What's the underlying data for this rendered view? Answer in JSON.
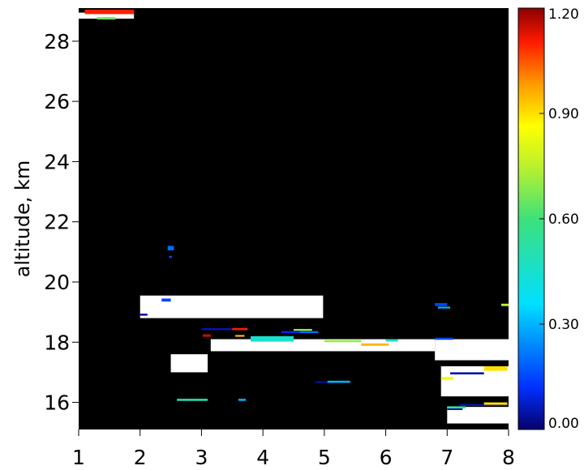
{
  "chart_data": {
    "type": "heatmap",
    "title": "",
    "xlabel": "",
    "ylabel": "altitude, km",
    "xlim": [
      1,
      8
    ],
    "ylim": [
      15.1,
      29.1
    ],
    "xticks": [
      "1",
      "2",
      "3",
      "4",
      "5",
      "6",
      "7",
      "8"
    ],
    "yticks": [
      "16",
      "18",
      "20",
      "22",
      "24",
      "26",
      "28"
    ],
    "background": "#000000",
    "colorbar": {
      "range": [
        0.0,
        1.2
      ],
      "tick_labels": [
        "0.00",
        "0.30",
        "0.60",
        "0.90",
        "1.20"
      ],
      "colormap": "rainbow (dark blue -> blue -> cyan -> green -> yellow -> orange -> red -> dark red)"
    },
    "saturated_color": "#ffffff",
    "saturated_regions": [
      {
        "x": [
          1.0,
          1.9
        ],
        "y": [
          28.75,
          28.95
        ]
      },
      {
        "x": [
          2.0,
          4.98
        ],
        "y": [
          18.8,
          19.55
        ]
      },
      {
        "x": [
          3.15,
          6.8
        ],
        "y": [
          17.7,
          18.1
        ]
      },
      {
        "x": [
          2.5,
          3.1
        ],
        "y": [
          17.0,
          17.6
        ]
      },
      {
        "x": [
          6.8,
          8.0
        ],
        "y": [
          17.4,
          18.1
        ]
      },
      {
        "x": [
          6.9,
          8.0
        ],
        "y": [
          16.2,
          17.2
        ]
      },
      {
        "x": [
          7.0,
          8.0
        ],
        "y": [
          15.3,
          15.85
        ]
      }
    ],
    "colored_cells": [
      {
        "x": [
          1.1,
          1.9
        ],
        "y": [
          28.9,
          29.05
        ],
        "value": 1.1
      },
      {
        "x": [
          1.3,
          1.6
        ],
        "y": [
          28.72,
          28.8
        ],
        "value": 0.65
      },
      {
        "x": [
          2.45,
          2.55
        ],
        "y": [
          21.05,
          21.2
        ],
        "value": 0.2
      },
      {
        "x": [
          2.47,
          2.52
        ],
        "y": [
          20.8,
          20.87
        ],
        "value": 0.15
      },
      {
        "x": [
          2.35,
          2.5
        ],
        "y": [
          19.35,
          19.45
        ],
        "value": 0.15
      },
      {
        "x": [
          2.0,
          2.12
        ],
        "y": [
          18.88,
          18.95
        ],
        "value": 0.05
      },
      {
        "x": [
          3.0,
          3.75
        ],
        "y": [
          18.4,
          18.47
        ],
        "value": 0.05
      },
      {
        "x": [
          3.5,
          3.75
        ],
        "y": [
          18.4,
          18.47
        ],
        "value": 1.1
      },
      {
        "x": [
          3.02,
          3.15
        ],
        "y": [
          18.18,
          18.26
        ],
        "value": 1.15
      },
      {
        "x": [
          3.55,
          3.7
        ],
        "y": [
          18.18,
          18.24
        ],
        "value": 0.95
      },
      {
        "x": [
          3.8,
          4.5
        ],
        "y": [
          18.02,
          18.2
        ],
        "value": 0.45
      },
      {
        "x": [
          4.3,
          4.6
        ],
        "y": [
          18.3,
          18.37
        ],
        "value": 0.1
      },
      {
        "x": [
          4.6,
          4.9
        ],
        "y": [
          18.3,
          18.37
        ],
        "value": 0.2
      },
      {
        "x": [
          4.5,
          4.8
        ],
        "y": [
          18.38,
          18.44
        ],
        "value": 0.7
      },
      {
        "x": [
          5.0,
          5.6
        ],
        "y": [
          18.0,
          18.07
        ],
        "value": 0.7
      },
      {
        "x": [
          5.6,
          6.05
        ],
        "y": [
          17.88,
          17.96
        ],
        "value": 0.95
      },
      {
        "x": [
          6.0,
          6.2
        ],
        "y": [
          18.02,
          18.1
        ],
        "value": 0.45
      },
      {
        "x": [
          6.8,
          7.1
        ],
        "y": [
          18.08,
          18.15
        ],
        "value": 0.15
      },
      {
        "x": [
          6.8,
          7.0
        ],
        "y": [
          19.2,
          19.3
        ],
        "value": 0.15
      },
      {
        "x": [
          6.85,
          7.05
        ],
        "y": [
          19.12,
          19.18
        ],
        "value": 0.3
      },
      {
        "x": [
          7.88,
          8.0
        ],
        "y": [
          19.2,
          19.28
        ],
        "value": 0.75
      },
      {
        "x": [
          7.05,
          7.6
        ],
        "y": [
          16.93,
          17.0
        ],
        "value": 0.05
      },
      {
        "x": [
          7.6,
          7.98
        ],
        "y": [
          17.05,
          17.2
        ],
        "value": 0.9
      },
      {
        "x": [
          6.9,
          7.1
        ],
        "y": [
          16.75,
          16.85
        ],
        "value": 0.85
      },
      {
        "x": [
          5.05,
          5.42
        ],
        "y": [
          16.65,
          16.72
        ],
        "value": 0.3
      },
      {
        "x": [
          4.85,
          5.05
        ],
        "y": [
          16.65,
          16.7
        ],
        "value": 0.05
      },
      {
        "x": [
          2.6,
          3.1
        ],
        "y": [
          16.05,
          16.12
        ],
        "value": 0.5
      },
      {
        "x": [
          3.6,
          3.72
        ],
        "y": [
          16.05,
          16.12
        ],
        "value": 0.3
      },
      {
        "x": [
          7.2,
          8.0
        ],
        "y": [
          15.88,
          15.95
        ],
        "value": 0.05
      },
      {
        "x": [
          7.6,
          7.98
        ],
        "y": [
          15.92,
          16.0
        ],
        "value": 0.9
      },
      {
        "x": [
          7.0,
          7.3
        ],
        "y": [
          15.8,
          15.87
        ],
        "value": 0.55
      },
      {
        "x": [
          7.0,
          7.25
        ],
        "y": [
          15.75,
          15.8
        ],
        "value": 0.05
      }
    ]
  }
}
